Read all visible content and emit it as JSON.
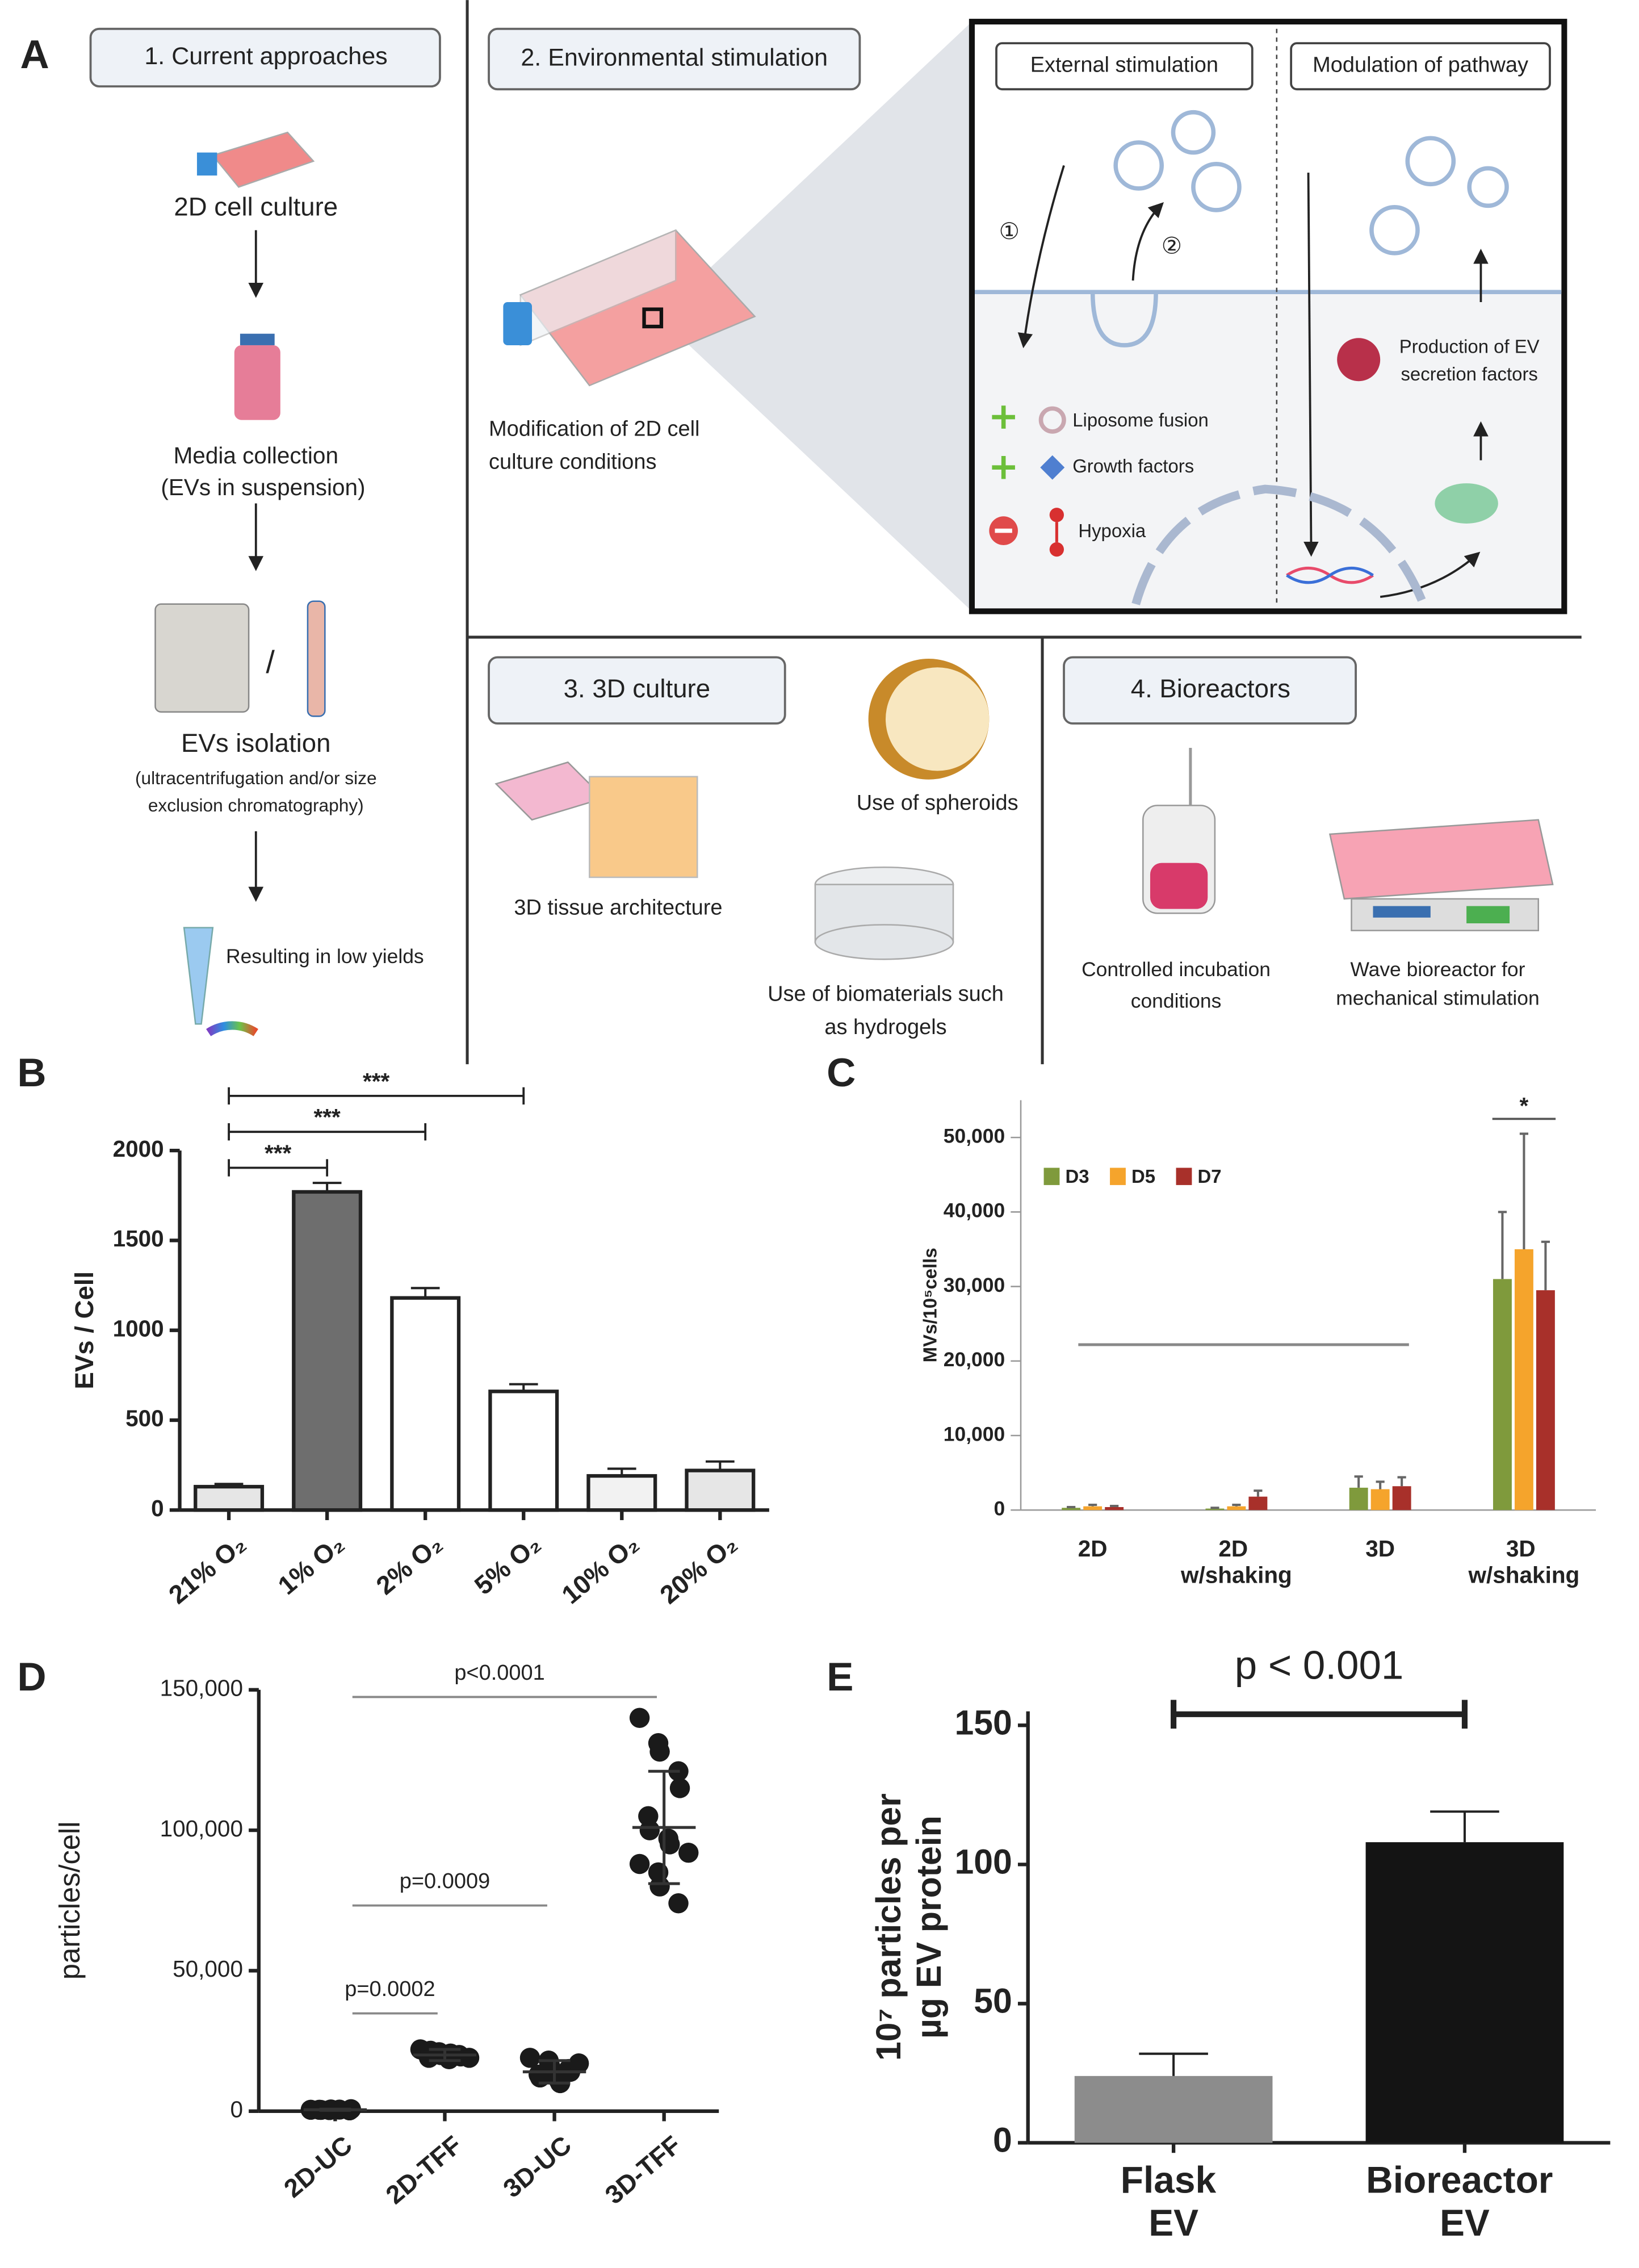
{
  "panel_a": {
    "label": "A",
    "current": {
      "heading": "1. Current approaches",
      "lines": [
        "2D cell culture",
        "Media collection",
        "(EVs in suspension)",
        "/",
        "EVs isolation",
        "(ultracentrifugation and/or size",
        "exclusion chromatography)",
        "Resulting in low yields"
      ]
    },
    "environmental": {
      "heading": "2. Environmental stimulation",
      "lines": [
        "Modification of 2D cell",
        "culture conditions"
      ],
      "zoom": {
        "left_heading": "External stimulation",
        "right_heading": "Modulation of pathway",
        "steps": [
          "①",
          "②"
        ],
        "items": [
          "Liposome fusion",
          "Growth factors",
          "Hypoxia"
        ],
        "production": [
          "Production of EV",
          "secretion factors"
        ]
      }
    },
    "culture3d": {
      "heading": "3. 3D culture",
      "lines": [
        "3D tissue architecture",
        "Use of spheroids",
        "Use of biomaterials such",
        "as hydrogels"
      ]
    },
    "bioreactors": {
      "heading": "4. Bioreactors",
      "lines": [
        "Controlled incubation",
        "conditions",
        "Wave bioreactor for",
        "mechanical stimulation"
      ]
    }
  },
  "chart_data": [
    {
      "label": "B",
      "type": "bar",
      "ylabel": "EVs / Cell",
      "categories": [
        "21% O₂",
        "1% O₂",
        "2% O₂",
        "5% O₂",
        "10% O₂",
        "20% O₂"
      ],
      "values": [
        130,
        1770,
        1180,
        660,
        190,
        220
      ],
      "errors": [
        15,
        50,
        55,
        40,
        40,
        50
      ],
      "colors": [
        "#e6e6e6",
        "#6e6e6e",
        "#ffffff",
        "#ffffff",
        "#f2f2f2",
        "#e6e6e6"
      ],
      "ylim": [
        0,
        2000
      ],
      "yticks": [
        0,
        500,
        1000,
        1500,
        2000
      ],
      "annotations": [
        "***",
        "***",
        "***"
      ]
    },
    {
      "label": "C",
      "type": "grouped_bar",
      "ylabel": "MVs/10⁵cells",
      "categories": [
        "2D",
        "2D w/shaking",
        "3D",
        "3D w/shaking"
      ],
      "series": [
        {
          "name": "D3",
          "color": "#7f9a3c",
          "values": [
            300,
            200,
            3000,
            31000
          ],
          "errors": [
            100,
            100,
            1500,
            9000
          ]
        },
        {
          "name": "D5",
          "color": "#f5a42c",
          "values": [
            500,
            500,
            2800,
            35000
          ],
          "errors": [
            200,
            200,
            1000,
            15500
          ]
        },
        {
          "name": "D7",
          "color": "#a8302a",
          "values": [
            400,
            1800,
            3200,
            29500
          ],
          "errors": [
            150,
            800,
            1200,
            6500
          ]
        }
      ],
      "ylim": [
        0,
        55000
      ],
      "yticks": [
        0,
        {
          "value": 10000,
          "label": "10,000"
        },
        {
          "value": 20000,
          "label": "20,000"
        },
        {
          "value": 30000,
          "label": "30,000"
        },
        {
          "value": 40000,
          "label": "40,000"
        },
        {
          "value": 50000,
          "label": "50,000"
        }
      ],
      "annotations": [
        "*"
      ]
    },
    {
      "label": "D",
      "type": "dot",
      "ylabel": "particles/cell",
      "categories": [
        "2D-UC",
        "2D-TFF",
        "3D-UC",
        "3D-TFF"
      ],
      "points": [
        [
          500,
          400,
          600,
          300,
          700,
          500,
          450,
          550
        ],
        [
          22000,
          21000,
          20000,
          20000,
          19500,
          19000,
          21500,
          18500,
          20500,
          19000
        ],
        [
          19000,
          18000,
          16000,
          15000,
          14000,
          13000,
          12000,
          11000,
          10000,
          17000
        ],
        [
          140000,
          131000,
          128000,
          121000,
          115000,
          105000,
          100000,
          97000,
          95000,
          92000,
          88000,
          85000,
          80000,
          74000
        ]
      ],
      "means": [
        500,
        20000,
        14000,
        101000
      ],
      "sds": [
        200,
        2000,
        4000,
        20000
      ],
      "ylim": [
        0,
        150000
      ],
      "yticks": [
        0,
        {
          "value": 50000,
          "label": "50,000"
        },
        {
          "value": 100000,
          "label": "100,000"
        },
        {
          "value": 150000,
          "label": "150,000"
        }
      ],
      "annotations": [
        "p<0.0001",
        "p=0.0009",
        "p=0.0002"
      ]
    },
    {
      "label": "E",
      "type": "bar",
      "ylabel": [
        "10⁷ particles per",
        "µg EV protein"
      ],
      "categories": [
        "Flask EV",
        "Bioreactor EV"
      ],
      "values": [
        24,
        108
      ],
      "errors": [
        8,
        11
      ],
      "colors": [
        "#8c8c8c",
        "#141414"
      ],
      "ylim": [
        0,
        155
      ],
      "yticks": [
        0,
        50,
        100,
        150
      ],
      "annotations": [
        "p < 0.001"
      ]
    }
  ]
}
